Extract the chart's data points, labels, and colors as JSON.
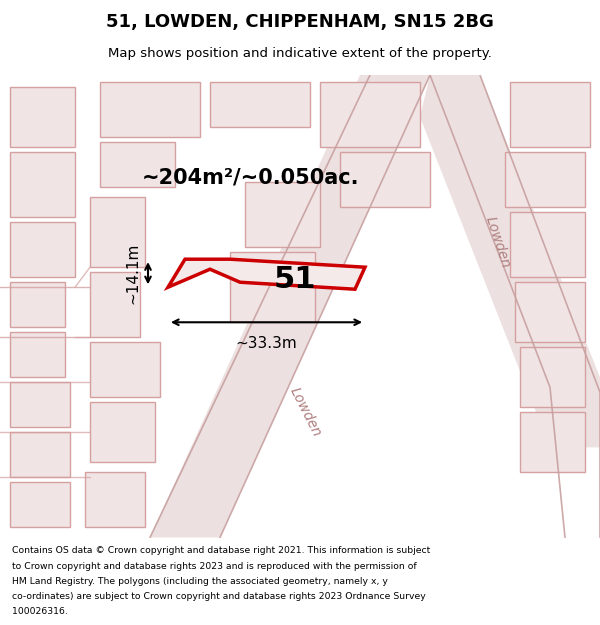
{
  "title_line1": "51, LOWDEN, CHIPPENHAM, SN15 2BG",
  "title_line2": "Map shows position and indicative extent of the property.",
  "area_text": "~204m²/~0.050ac.",
  "property_number": "51",
  "dim_width": "~33.3m",
  "dim_height": "~14.1m",
  "footer_lines": [
    "Contains OS data © Crown copyright and database right 2021. This information is subject",
    "to Crown copyright and database rights 2023 and is reproduced with the permission of",
    "HM Land Registry. The polygons (including the associated geometry, namely x, y",
    "co-ordinates) are subject to Crown copyright and database rights 2023 Ordnance Survey",
    "100026316."
  ],
  "background_color": "#f7f0f0",
  "plot_outline_color": "#cc0000",
  "road_line_color": "#d4a0a0",
  "building_fill": "#f0e4e4",
  "building_edge": "#d4a0a0",
  "street_label": "Lowden"
}
